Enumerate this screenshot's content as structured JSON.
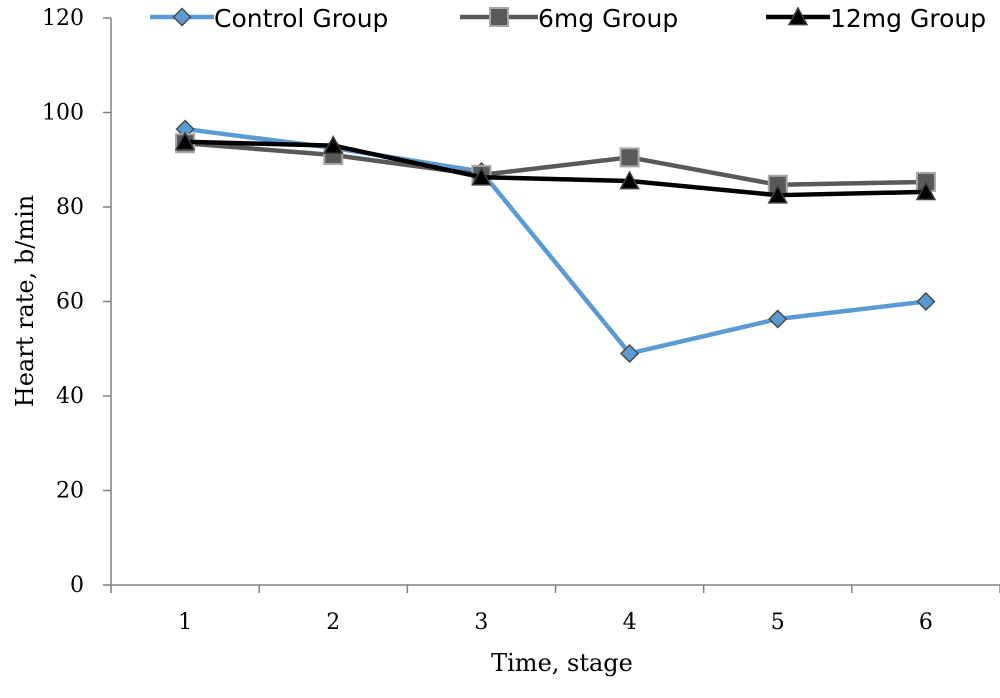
{
  "chart_data": {
    "type": "line",
    "x": [
      1,
      2,
      3,
      4,
      5,
      6
    ],
    "xlabel": "Time, stage",
    "ylabel": "Heart rate, b/min",
    "ylim": [
      0,
      120
    ],
    "yticks": [
      0,
      20,
      40,
      60,
      80,
      100,
      120
    ],
    "grid": false,
    "legend_position": "top",
    "series": [
      {
        "name": "Control Group",
        "values": [
          96.5,
          92.5,
          87.5,
          49,
          56.3,
          60
        ],
        "color": "#5b9bd5",
        "marker": "diamond"
      },
      {
        "name": "6mg Group",
        "values": [
          93.5,
          91,
          86.8,
          90.5,
          84.7,
          85.3
        ],
        "color": "#595959",
        "marker": "square"
      },
      {
        "name": "12mg Group",
        "values": [
          93.8,
          93,
          86.3,
          85.5,
          82.5,
          83.2
        ],
        "color": "#000000",
        "marker": "triangle"
      }
    ]
  }
}
